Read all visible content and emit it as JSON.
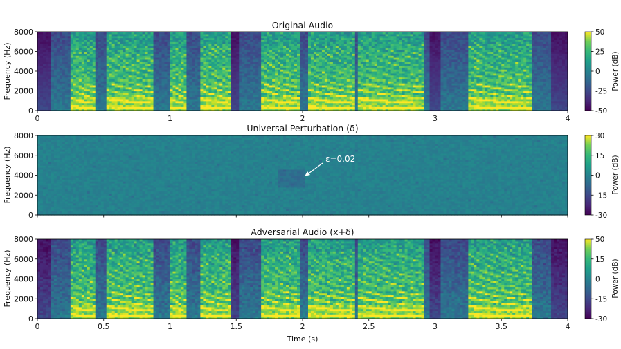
{
  "chart_data": [
    {
      "type": "heatmap",
      "title": "Original Audio",
      "ylabel": "Frequency (Hz)",
      "xlabel": "",
      "xlim": [
        0,
        4
      ],
      "ylim": [
        0,
        8000
      ],
      "x_ticks": [
        "0",
        "1",
        "2",
        "3",
        "4"
      ],
      "y_ticks": [
        "0",
        "2000",
        "4000",
        "6000",
        "8000"
      ],
      "colormap": "viridis",
      "colorbar": {
        "label": "Power (dB)",
        "range": [
          -50,
          50
        ],
        "ticks": [
          "50",
          "25",
          "0",
          "-25",
          "-50"
        ]
      },
      "content": "speech"
    },
    {
      "type": "heatmap",
      "title": "Universal Perturbation (δ)",
      "ylabel": "Frequency (Hz)",
      "xlabel": "",
      "xlim": [
        0,
        4
      ],
      "ylim": [
        0,
        8000
      ],
      "x_ticks": [],
      "y_ticks": [
        "0",
        "2000",
        "4000",
        "6000",
        "8000"
      ],
      "colormap": "viridis",
      "colorbar": {
        "label": "Power (dB)",
        "range": [
          -30,
          30
        ],
        "ticks": [
          "30",
          "15",
          "0",
          "-15",
          "-30"
        ]
      },
      "content": "noise",
      "annotation": {
        "text": "ε=0.02",
        "point": [
          1.98,
          4000
        ],
        "text_at": [
          2.18,
          5400
        ]
      }
    },
    {
      "type": "heatmap",
      "title": "Adversarial Audio (x+δ)",
      "ylabel": "Frequency (Hz)",
      "xlabel": "Time (s)",
      "xlim": [
        0,
        4
      ],
      "ylim": [
        0,
        8000
      ],
      "x_ticks": [
        "0",
        "0.5",
        "1",
        "1.5",
        "2",
        "2.5",
        "3",
        "3.5",
        "4"
      ],
      "y_ticks": [
        "0",
        "2000",
        "4000",
        "6000",
        "8000"
      ],
      "colormap": "viridis",
      "colorbar": {
        "label": "Power (dB)",
        "range": [
          -30,
          50
        ],
        "ticks": [
          "50",
          "15",
          "0",
          "-15",
          "-30"
        ]
      },
      "content": "speech"
    }
  ],
  "colors": {
    "viridis_low": "#440154",
    "viridis_mid": "#21918c",
    "viridis_high": "#fde725",
    "text": "#111111"
  }
}
